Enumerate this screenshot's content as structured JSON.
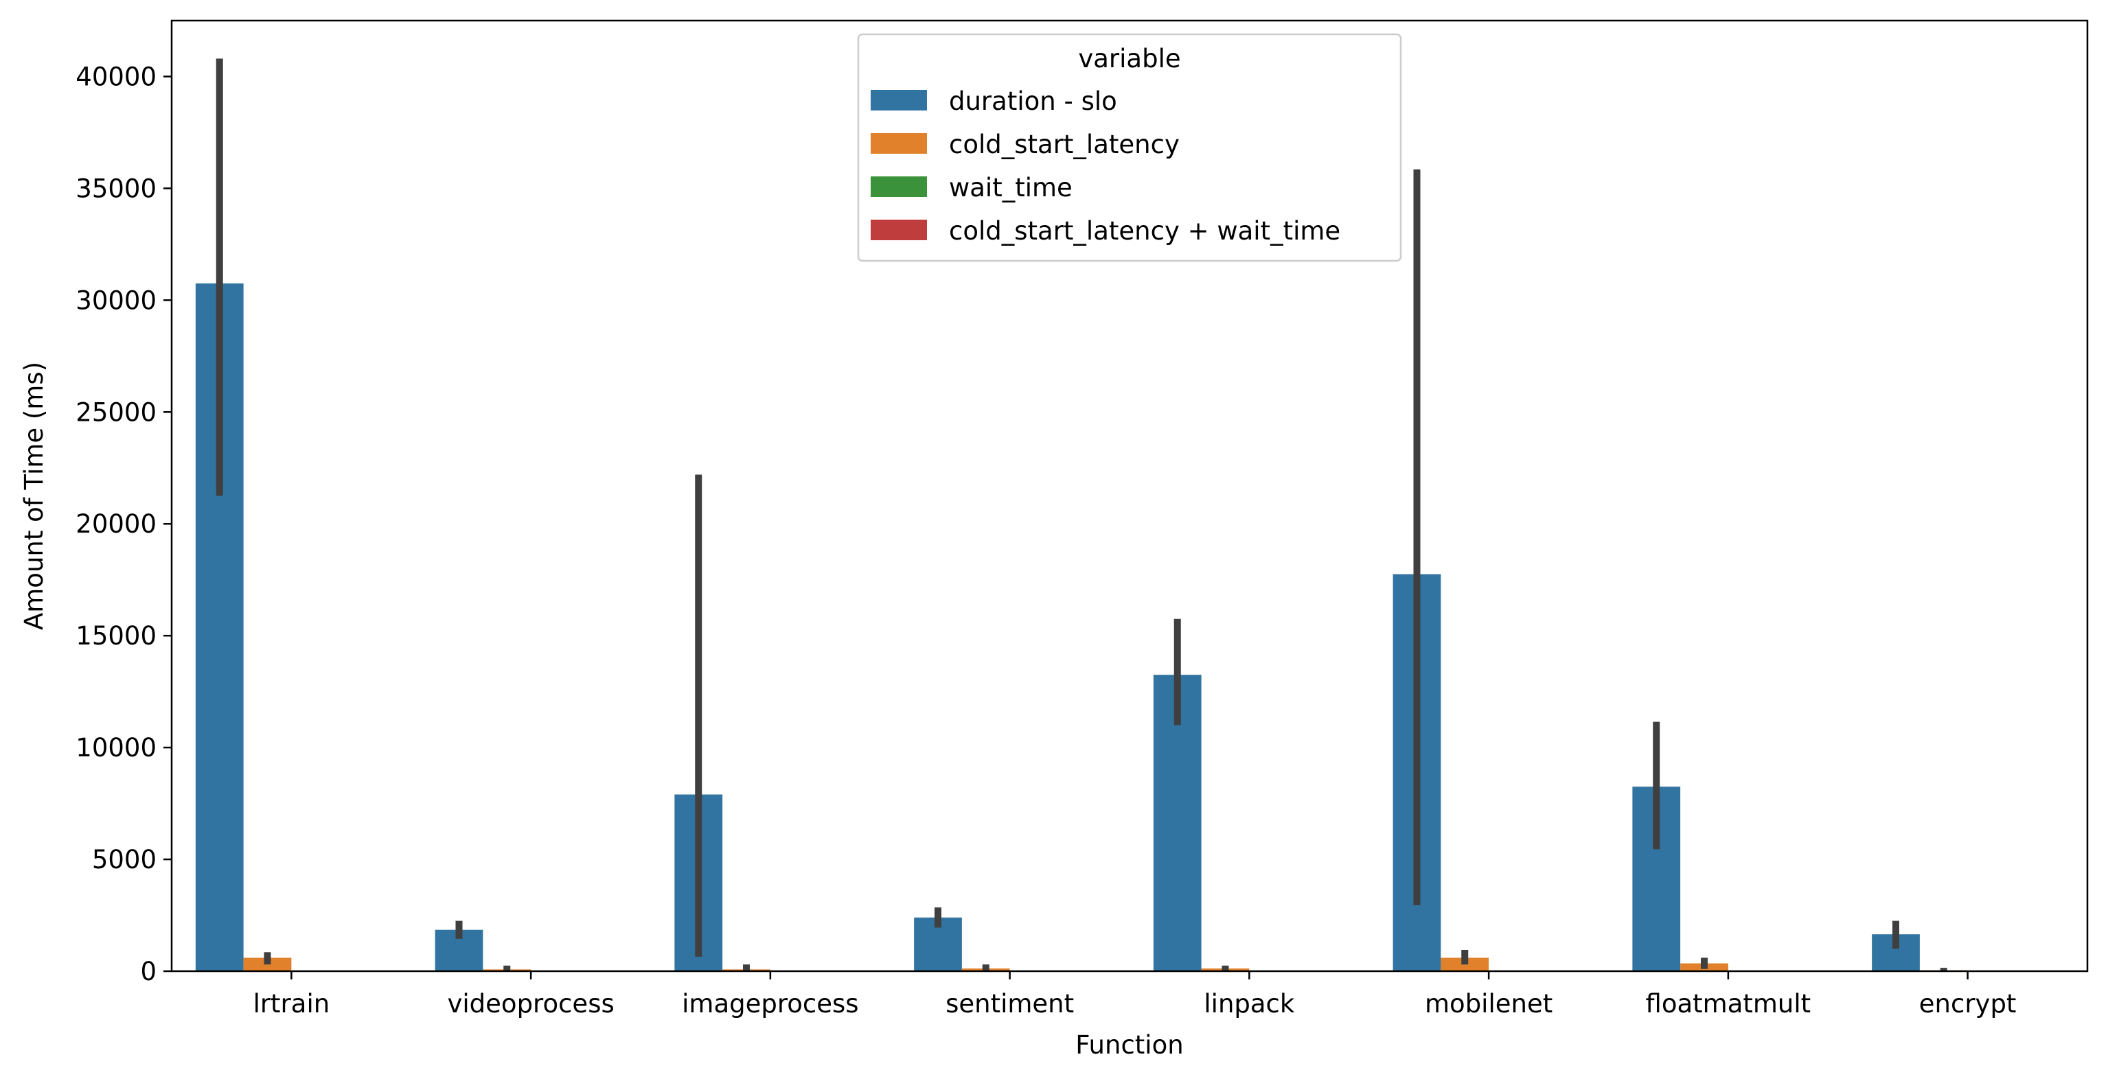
{
  "chart_data": {
    "type": "bar",
    "xlabel": "Function",
    "ylabel": "Amount of Time (ms)",
    "ylim": [
      0,
      42500
    ],
    "yticks": [
      0,
      5000,
      10000,
      15000,
      20000,
      25000,
      30000,
      35000,
      40000
    ],
    "grid": false,
    "legend": {
      "title": "variable",
      "placement": "top-center"
    },
    "categories": [
      "lrtrain",
      "videoprocess",
      "imageprocess",
      "sentiment",
      "linpack",
      "mobilenet",
      "floatmatmult",
      "encrypt"
    ],
    "series": [
      {
        "name": "duration - slo",
        "color": "#3274a1",
        "values": [
          30750,
          1850,
          7900,
          2400,
          13250,
          17750,
          8250,
          1650
        ],
        "error_low": [
          21250,
          1450,
          650,
          1950,
          11000,
          2950,
          5450,
          1000
        ],
        "error_high": [
          40800,
          2250,
          22200,
          2850,
          15750,
          35850,
          11150,
          2250
        ]
      },
      {
        "name": "cold_start_latency",
        "color": "#e1812c",
        "values": [
          600,
          80,
          80,
          120,
          120,
          600,
          350,
          40
        ],
        "error_low": [
          300,
          0,
          0,
          0,
          0,
          300,
          100,
          0
        ],
        "error_high": [
          850,
          250,
          300,
          300,
          250,
          950,
          600,
          150
        ]
      },
      {
        "name": "wait_time",
        "color": "#3a923a",
        "values": [
          0,
          0,
          0,
          0,
          0,
          0,
          0,
          0
        ]
      },
      {
        "name": "cold_start_latency + wait_time",
        "color": "#c03d3e",
        "values": [
          0,
          0,
          0,
          0,
          0,
          0,
          0,
          0
        ]
      }
    ]
  }
}
